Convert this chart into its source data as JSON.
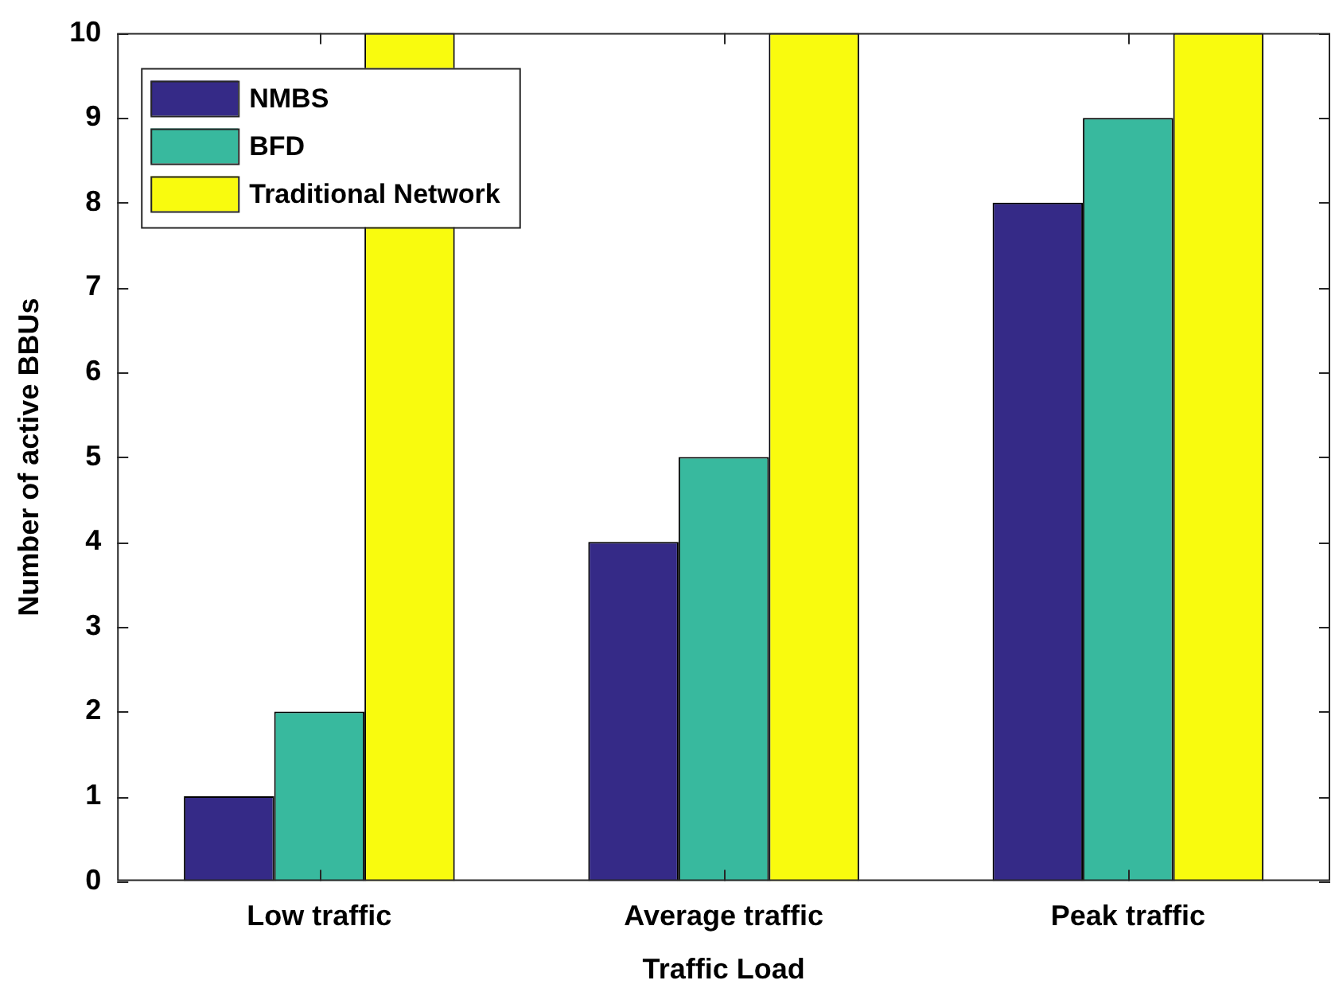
{
  "chart_data": {
    "type": "bar",
    "xlabel": "Traffic Load",
    "ylabel": "Number of active BBUs",
    "categories": [
      "Low traffic",
      "Average traffic",
      "Peak traffic"
    ],
    "series": [
      {
        "name": "NMBS",
        "color": "#352a87",
        "values": [
          1,
          4,
          8
        ]
      },
      {
        "name": "BFD",
        "color": "#38b99e",
        "values": [
          2,
          5,
          9
        ]
      },
      {
        "name": "Traditional Network",
        "color": "#f9fb0e",
        "values": [
          10,
          10,
          10
        ]
      }
    ],
    "ylim": [
      0,
      10
    ],
    "yticks": [
      0,
      1,
      2,
      3,
      4,
      5,
      6,
      7,
      8,
      9,
      10
    ],
    "grid": false,
    "legend": "top left"
  }
}
